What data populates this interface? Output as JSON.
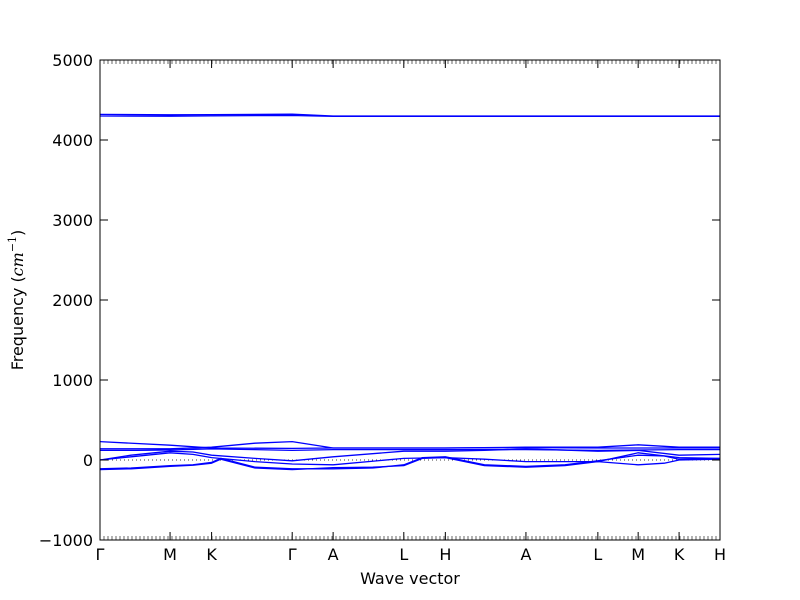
{
  "chart_data": {
    "type": "line",
    "title": "",
    "xlabel": "Wave vector",
    "ylabel": "Frequency (cm⁻¹)",
    "ylabel_parts": {
      "prefix": "Frequency (",
      "unit": "cm",
      "exp": "−1",
      "suffix": ")"
    },
    "ylim": [
      -1000,
      5000
    ],
    "yticks": [
      -1000,
      0,
      1000,
      2000,
      3000,
      4000,
      5000
    ],
    "xlim": [
      0,
      1
    ],
    "high_symmetry_points": [
      {
        "label": "Γ",
        "x": 0.0
      },
      {
        "label": "M",
        "x": 0.113
      },
      {
        "label": "K",
        "x": 0.18
      },
      {
        "label": "Γ",
        "x": 0.31
      },
      {
        "label": "A",
        "x": 0.376
      },
      {
        "label": "L",
        "x": 0.49
      },
      {
        "label": "H",
        "x": 0.557
      },
      {
        "label": "A",
        "x": 0.687
      },
      {
        "label": "L",
        "x": 0.803
      },
      {
        "label": "M",
        "x": 0.868
      },
      {
        "label": "K",
        "x": 0.934
      },
      {
        "label": "H",
        "x": 1.0
      }
    ],
    "zero_line": true,
    "line_color": "#0000ff",
    "series": [
      {
        "x": [
          0,
          0.113,
          0.18,
          0.31,
          0.376,
          1.0
        ],
        "y": [
          4320,
          4315,
          4318,
          4322,
          4300,
          4300
        ]
      },
      {
        "x": [
          0,
          0.113,
          0.18,
          0.31,
          0.376,
          1.0
        ],
        "y": [
          4300,
          4298,
          4302,
          4306,
          4295,
          4295
        ]
      },
      {
        "x": [
          0,
          0.113,
          0.18,
          0.31,
          0.376,
          0.49,
          0.557,
          0.687,
          0.803,
          0.868,
          0.934,
          1.0
        ],
        "y": [
          230,
          185,
          150,
          145,
          150,
          150,
          150,
          155,
          150,
          150,
          150,
          150
        ]
      },
      {
        "x": [
          0,
          0.113,
          0.18,
          0.25,
          0.31,
          0.376,
          0.49,
          0.557,
          0.687,
          0.803,
          0.868,
          0.934,
          1.0
        ],
        "y": [
          140,
          140,
          160,
          210,
          230,
          150,
          150,
          150,
          160,
          160,
          190,
          160,
          160
        ]
      },
      {
        "x": [
          0,
          0.06,
          0.113,
          0.18,
          0.25,
          0.31,
          0.376,
          0.49,
          0.557,
          0.687,
          0.803,
          0.868,
          0.934,
          1.0
        ],
        "y": [
          120,
          120,
          125,
          140,
          130,
          120,
          130,
          130,
          130,
          130,
          120,
          125,
          130,
          130
        ]
      },
      {
        "x": [
          0,
          0.05,
          0.113,
          0.15,
          0.18,
          0.25,
          0.31,
          0.376,
          0.49,
          0.557,
          0.62,
          0.687,
          0.803,
          0.868,
          0.934,
          1.0
        ],
        "y": [
          0,
          60,
          110,
          100,
          60,
          20,
          -10,
          40,
          110,
          110,
          120,
          140,
          110,
          120,
          60,
          70
        ]
      },
      {
        "x": [
          0,
          0.05,
          0.113,
          0.15,
          0.18,
          0.25,
          0.31,
          0.376,
          0.49,
          0.557,
          0.62,
          0.687,
          0.803,
          0.868,
          0.934,
          1.0
        ],
        "y": [
          0,
          40,
          90,
          70,
          30,
          -20,
          -50,
          -60,
          20,
          30,
          10,
          -20,
          -20,
          90,
          30,
          20
        ]
      },
      {
        "x": [
          0,
          0.05,
          0.113,
          0.15,
          0.18,
          0.195,
          0.25,
          0.31,
          0.376,
          0.44,
          0.49,
          0.52,
          0.557,
          0.62,
          0.687,
          0.75,
          0.803,
          0.868,
          0.91,
          0.934,
          1.0
        ],
        "y": [
          -110,
          -100,
          -70,
          -60,
          -30,
          20,
          -90,
          -110,
          -110,
          -100,
          -60,
          30,
          40,
          -60,
          -80,
          -60,
          -10,
          60,
          50,
          10,
          20
        ]
      },
      {
        "x": [
          0,
          0.05,
          0.113,
          0.15,
          0.18,
          0.195,
          0.25,
          0.31,
          0.376,
          0.44,
          0.49,
          0.52,
          0.557,
          0.62,
          0.687,
          0.75,
          0.803,
          0.868,
          0.91,
          0.934,
          1.0
        ],
        "y": [
          -120,
          -110,
          -80,
          -65,
          -40,
          10,
          -100,
          -120,
          -95,
          -90,
          -70,
          20,
          30,
          -70,
          -90,
          -70,
          -20,
          -60,
          -40,
          0,
          10
        ]
      }
    ]
  }
}
